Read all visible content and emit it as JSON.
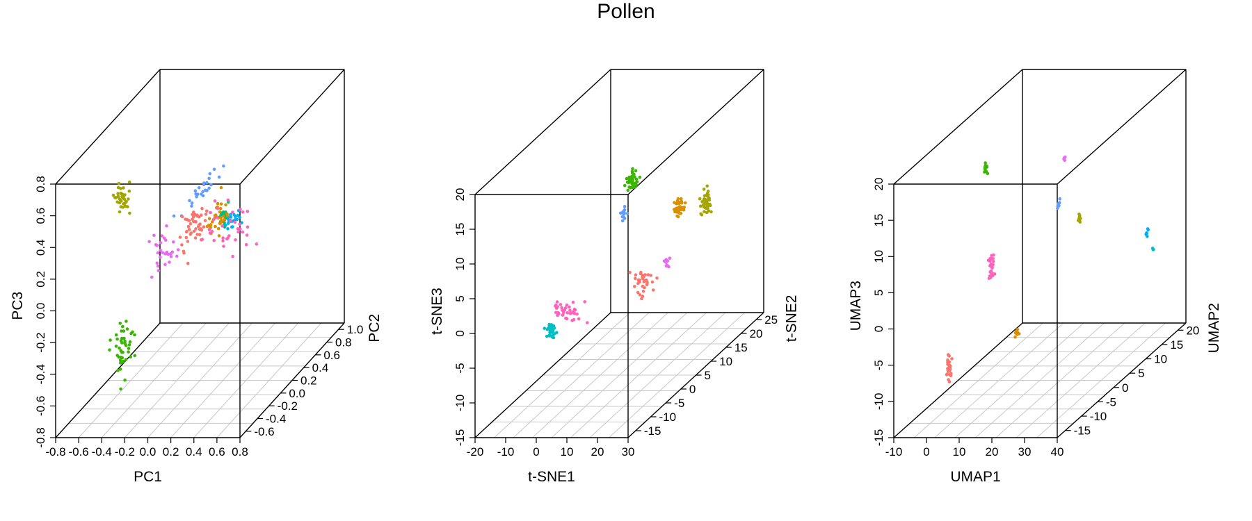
{
  "figure": {
    "title": "Pollen"
  },
  "colors": {
    "frame": "#000000",
    "grid": "#c8c8c8",
    "clusters": [
      "#F8766D",
      "#D89000",
      "#A3A500",
      "#39B600",
      "#00BF7D",
      "#00BFC4",
      "#00B0F6",
      "#619CFF",
      "#E76BF3",
      "#FF62BC"
    ]
  },
  "chart_data": [
    {
      "type": "scatter",
      "subtype": "3d-scatter",
      "title": "",
      "xlabel": "PC1",
      "ylabel": "PC2",
      "zlabel": "PC3",
      "xlim": [
        -0.8,
        0.8
      ],
      "ylim": [
        -0.8,
        1.0
      ],
      "zlim": [
        -0.8,
        0.8
      ],
      "xticks": [
        "-0.8",
        "-0.6",
        "-0.4",
        "-0.2",
        "0.0",
        "0.2",
        "0.4",
        "0.6",
        "0.8"
      ],
      "yticks": [
        "-0.6",
        "-0.4",
        "-0.2",
        "0.0",
        "0.2",
        "0.4",
        "0.6",
        "0.8",
        "1.0"
      ],
      "zticks": [
        "-0.8",
        "-0.6",
        "-0.4",
        "-0.2",
        "0.0",
        "0.2",
        "0.4",
        "0.6",
        "0.8"
      ],
      "grid": "floor",
      "clusters": [
        {
          "color": "#619CFF",
          "x": -0.29,
          "y": 0.78,
          "z": 0.15,
          "sx": 0.04,
          "sy": 0.18,
          "sz": 0.03,
          "n": 25
        },
        {
          "color": "#00B0F6",
          "x": 0.01,
          "y": 0.62,
          "z": 0.0,
          "sx": 0.03,
          "sy": 0.06,
          "sz": 0.02,
          "n": 25
        },
        {
          "color": "#A3A500",
          "x": -0.62,
          "y": 0.0,
          "z": 0.4,
          "sx": 0.03,
          "sy": 0.01,
          "sz": 0.05,
          "n": 35
        },
        {
          "color": "#00BF7D",
          "x": 0.15,
          "y": 0.22,
          "z": 0.18,
          "sx": 0.02,
          "sy": 0.05,
          "sz": 0.05,
          "n": 18
        },
        {
          "color": "#F8766D",
          "x": 0.05,
          "y": -0.1,
          "z": 0.25,
          "sx": 0.04,
          "sy": 0.08,
          "sz": 0.06,
          "n": 50
        },
        {
          "color": "#D89000",
          "x": 0.25,
          "y": -0.1,
          "z": 0.3,
          "sx": 0.03,
          "sy": 0.06,
          "sz": 0.06,
          "n": 35
        },
        {
          "color": "#E76BF3",
          "x": -0.15,
          "y": -0.25,
          "z": 0.15,
          "sx": 0.06,
          "sy": 0.05,
          "sz": 0.08,
          "n": 30
        },
        {
          "color": "#FF62BC",
          "x": 0.3,
          "y": -0.05,
          "z": 0.2,
          "sx": 0.12,
          "sy": 0.1,
          "sz": 0.08,
          "n": 35
        },
        {
          "color": "#39B600",
          "x": -0.38,
          "y": -0.45,
          "z": -0.38,
          "sx": 0.04,
          "sy": 0.05,
          "sz": 0.08,
          "n": 45
        }
      ]
    },
    {
      "type": "scatter",
      "subtype": "3d-scatter",
      "title": "",
      "xlabel": "t-SNE1",
      "ylabel": "t-SNE2",
      "zlabel": "t-SNE3",
      "xlim": [
        -20,
        30
      ],
      "ylim": [
        -20,
        25
      ],
      "zlim": [
        -15,
        20
      ],
      "xticks": [
        "-20",
        "-10",
        "0",
        "10",
        "20",
        "30"
      ],
      "yticks": [
        "-15",
        "-10",
        "-5",
        "0",
        "5",
        "10",
        "15",
        "20",
        "25"
      ],
      "zticks": [
        "-15",
        "-10",
        "-5",
        "0",
        "5",
        "10",
        "15",
        "20"
      ],
      "grid": "floor",
      "clusters": [
        {
          "color": "#39B600",
          "x": -8,
          "y": 20,
          "z": 6,
          "sx": 0.8,
          "sy": 0.5,
          "sz": 0.7,
          "n": 40
        },
        {
          "color": "#A3A500",
          "x": 24,
          "y": 12,
          "z": 6,
          "sx": 0.8,
          "sy": 0.5,
          "sz": 0.8,
          "n": 45
        },
        {
          "color": "#D89000",
          "x": 21,
          "y": 6,
          "z": 8,
          "sx": 0.8,
          "sy": 0.5,
          "sz": 0.6,
          "n": 40
        },
        {
          "color": "#619CFF",
          "x": 9,
          "y": 0,
          "z": 9,
          "sx": 0.4,
          "sy": 0.3,
          "sz": 0.6,
          "n": 15
        },
        {
          "color": "#E76BF3",
          "x": 23,
          "y": 0,
          "z": 2,
          "sx": 0.4,
          "sy": 0.3,
          "sz": 0.6,
          "n": 10
        },
        {
          "color": "#F8766D",
          "x": 20,
          "y": -5,
          "z": 1,
          "sx": 2.0,
          "sy": 0.5,
          "sz": 1.0,
          "n": 35
        },
        {
          "color": "#FF62BC",
          "x": 2,
          "y": -12,
          "z": 0,
          "sx": 3.0,
          "sy": 0.3,
          "sz": 0.6,
          "n": 40
        },
        {
          "color": "#00BFC4",
          "x": -2,
          "y": -13,
          "z": -2.5,
          "sx": 0.7,
          "sy": 0.3,
          "sz": 0.5,
          "n": 40
        }
      ]
    },
    {
      "type": "scatter",
      "subtype": "3d-scatter",
      "title": "",
      "xlabel": "UMAP1",
      "ylabel": "UMAP2",
      "zlabel": "UMAP3",
      "xlim": [
        -10,
        40
      ],
      "ylim": [
        -20,
        20
      ],
      "zlim": [
        -15,
        20
      ],
      "xticks": [
        "-10",
        "0",
        "10",
        "20",
        "30",
        "40"
      ],
      "yticks": [
        "-15",
        "-10",
        "-5",
        "0",
        "5",
        "10",
        "15",
        "20"
      ],
      "zticks": [
        "-15",
        "-10",
        "-5",
        "0",
        "5",
        "10",
        "15",
        "20"
      ],
      "grid": "floor",
      "clusters": [
        {
          "color": "#E76BF3",
          "x": 9,
          "y": 14,
          "z": 10,
          "sx": 0.2,
          "sy": 0.2,
          "sz": 0.2,
          "n": 4
        },
        {
          "color": "#619CFF",
          "x": 8,
          "y": 13,
          "z": 4,
          "sx": 0.2,
          "sy": 0.2,
          "sz": 0.3,
          "n": 8
        },
        {
          "color": "#39B600",
          "x": 0,
          "y": -1.5,
          "z": 15,
          "sx": 0.2,
          "sy": 0.2,
          "sz": 0.4,
          "n": 12
        },
        {
          "color": "#A3A500",
          "x": 28,
          "y": -1,
          "z": 7.5,
          "sx": 0.2,
          "sy": 0.2,
          "sz": 0.4,
          "n": 10
        },
        {
          "color": "#FF62BC",
          "x": 14,
          "y": -14,
          "z": 6,
          "sx": 0.3,
          "sy": 0.3,
          "sz": 1.0,
          "n": 30
        },
        {
          "color": "#00B0F6",
          "x": 28,
          "y": 20,
          "z": -2.5,
          "sx": 0.2,
          "sy": 0.2,
          "sz": 0.3,
          "n": 8
        },
        {
          "color": "#00BFC4",
          "x": 32,
          "y": 18,
          "z": -4,
          "sx": 0.1,
          "sy": 0.1,
          "sz": 0.1,
          "n": 3
        },
        {
          "color": "#D89000",
          "x": 18,
          "y": -10,
          "z": -4.5,
          "sx": 0.2,
          "sy": 0.2,
          "sz": 0.3,
          "n": 10
        },
        {
          "color": "#F8766D",
          "x": 1,
          "y": -14,
          "z": -7.5,
          "sx": 0.4,
          "sy": 0.2,
          "sz": 0.8,
          "n": 30
        }
      ]
    }
  ]
}
